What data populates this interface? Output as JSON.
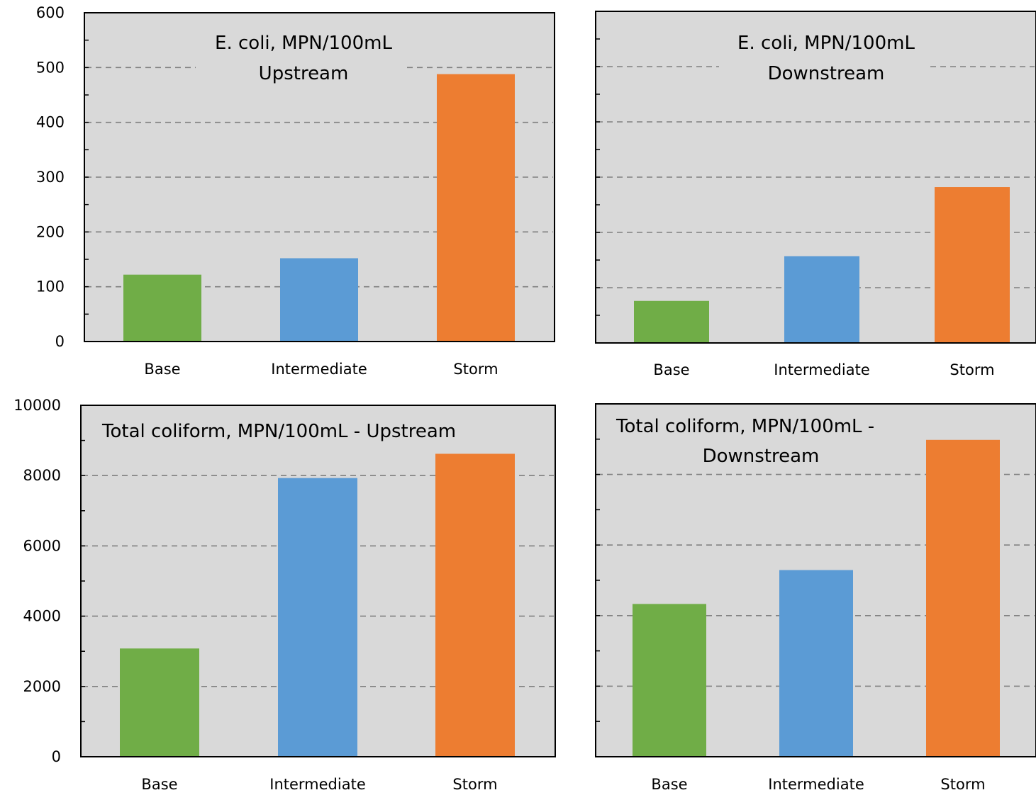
{
  "colors": {
    "plot_bg": "#d9d9d9",
    "base": "#70ad47",
    "intermediate": "#5b9bd5",
    "storm": "#ed7d31",
    "grid": "#808080"
  },
  "chart_data": [
    {
      "type": "bar",
      "title_lines": [
        "E. coli, MPN/100mL",
        "Upstream"
      ],
      "categories": [
        "Base",
        "Intermediate",
        "Storm"
      ],
      "values": [
        122,
        152,
        488
      ],
      "ylim": [
        0,
        600
      ],
      "yticks": [
        "0",
        "100",
        "200",
        "300",
        "400",
        "500",
        "600"
      ],
      "grid": true
    },
    {
      "type": "bar",
      "title_lines": [
        "E. coli, MPN/100mL",
        "Downstream"
      ],
      "categories": [
        "Base",
        "Intermediate",
        "Storm"
      ],
      "values": [
        76,
        157,
        282
      ],
      "ylim": [
        0,
        600
      ],
      "yticks": [],
      "grid": true
    },
    {
      "type": "bar",
      "title_lines": [
        "Total coliform, MPN/100mL - Upstream"
      ],
      "categories": [
        "Base",
        "Intermediate",
        "Storm"
      ],
      "values": [
        3080,
        7930,
        8620
      ],
      "ylim": [
        0,
        10000
      ],
      "yticks": [
        "0",
        "2000",
        "4000",
        "6000",
        "8000",
        "10000"
      ],
      "grid": true
    },
    {
      "type": "bar",
      "title_lines": [
        "Total coliform, MPN/100mL -",
        "Downstream"
      ],
      "categories": [
        "Base",
        "Intermediate",
        "Storm"
      ],
      "values": [
        4330,
        5290,
        8980
      ],
      "ylim": [
        0,
        10000
      ],
      "yticks": [],
      "grid": true
    }
  ]
}
